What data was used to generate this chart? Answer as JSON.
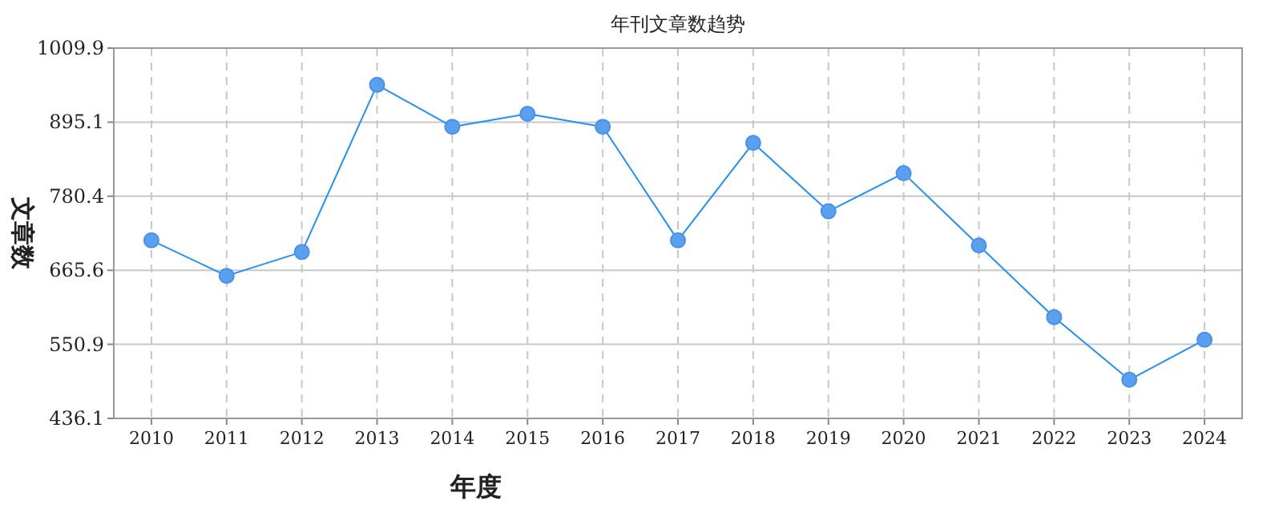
{
  "chart_data": {
    "type": "line",
    "title": "年刊文章数趋势",
    "xlabel": "年度",
    "ylabel": "文章数",
    "categories": [
      "2010",
      "2011",
      "2012",
      "2013",
      "2014",
      "2015",
      "2016",
      "2017",
      "2018",
      "2019",
      "2020",
      "2021",
      "2022",
      "2023",
      "2024"
    ],
    "series": [
      {
        "color": "#1e90ff",
        "values": [
          712,
          657,
          694,
          953,
          888,
          908,
          888,
          712,
          863,
          757,
          816,
          704,
          593,
          496,
          558
        ]
      }
    ],
    "ylim": [
      436.1,
      1009.9
    ],
    "yticks": [
      436.1,
      550.9,
      665.6,
      780.4,
      895.1,
      1009.9
    ],
    "grid": true,
    "marker": "circle",
    "line_style": "solid"
  }
}
